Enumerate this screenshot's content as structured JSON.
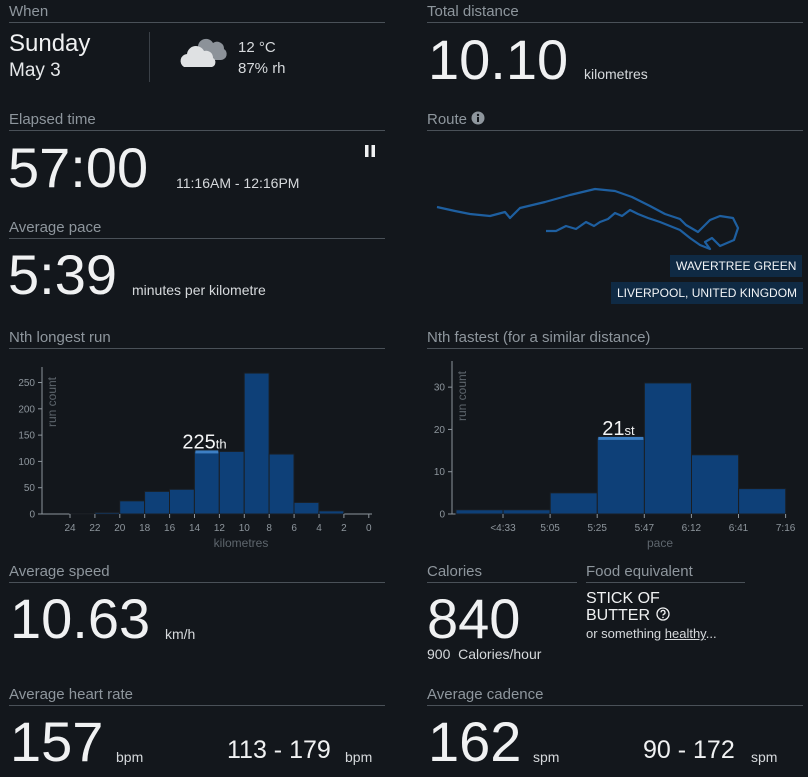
{
  "when": {
    "label": "When",
    "day": "Sunday",
    "date": "May 3",
    "temperature": "12 °C",
    "humidity": "87% rh",
    "weather_icon": "cloud-icon"
  },
  "distance": {
    "label": "Total distance",
    "value": "10.10",
    "unit": "kilometres"
  },
  "elapsed": {
    "label": "Elapsed time",
    "value": "57:00",
    "range": "11:16AM - 12:16PM",
    "pause_icon": "pause-icon"
  },
  "route": {
    "label": "Route",
    "info_icon": "info-icon",
    "place1": "WAVERTREE GREEN",
    "place2": "LIVERPOOL, UNITED KINGDOM"
  },
  "pace": {
    "label": "Average pace",
    "value": "5:39",
    "unit": "minutes per kilometre"
  },
  "nth_longest": {
    "label": "Nth longest run",
    "rank": "225",
    "suffix": "th"
  },
  "nth_fastest": {
    "label": "Nth fastest (for a similar distance)",
    "rank": "21",
    "suffix": "st"
  },
  "speed": {
    "label": "Average speed",
    "value": "10.63",
    "unit": "km/h"
  },
  "calories": {
    "label": "Calories",
    "value": "840",
    "rate_value": "900",
    "rate_unit": "Calories/hour"
  },
  "food": {
    "label": "Food equivalent",
    "line1": "STICK OF",
    "line2": "BUTTER",
    "help_icon": "help-icon",
    "sub_prefix": "or something ",
    "sub_link": "healthy",
    "sub_suffix": "..."
  },
  "heart": {
    "label": "Average heart rate",
    "value": "157",
    "unit": "bpm",
    "range": "113 - 179",
    "range_unit": "bpm"
  },
  "cadence": {
    "label": "Average cadence",
    "value": "162",
    "unit": "spm",
    "range": "90 - 172",
    "range_unit": "spm"
  },
  "colors": {
    "background": "#13171c",
    "bar": "#0e4078",
    "route_line": "#1e5fa0",
    "highlight": "#3d7fc4"
  },
  "chart_data": [
    {
      "type": "bar",
      "ylabel": "run count",
      "xlabel": "kilometres",
      "ylim": [
        0,
        270
      ],
      "yticks": [
        "0",
        "50",
        "100",
        "150",
        "200",
        "250"
      ],
      "xticks": [
        "24",
        "22",
        "20",
        "18",
        "16",
        "14",
        "12",
        "10",
        "8",
        "6",
        "4",
        "2",
        "0"
      ],
      "x_reversed": true,
      "bin_edges": [
        24,
        22,
        20,
        18,
        16,
        14,
        12,
        10,
        8,
        6,
        4,
        2,
        0
      ],
      "values": [
        0,
        1,
        3,
        25,
        43,
        47,
        119,
        119,
        268,
        114,
        22,
        6
      ],
      "highlight_index": 6
    },
    {
      "type": "bar",
      "ylabel": "run count",
      "xlabel": "pace",
      "ylim": [
        0,
        35
      ],
      "yticks": [
        "0",
        "10",
        "20",
        "30"
      ],
      "xticks": [
        "<4:33",
        "5:05",
        "5:25",
        "5:47",
        "6:12",
        "6:41",
        "7:16"
      ],
      "values": [
        1,
        1,
        5,
        18,
        31,
        14,
        6
      ],
      "highlight_index": 3
    }
  ]
}
